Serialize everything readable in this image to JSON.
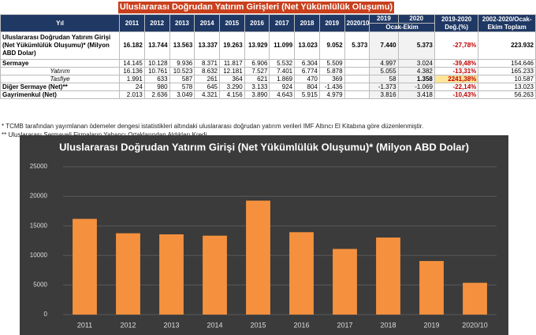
{
  "table": {
    "title": "Uluslararası Doğrudan Yatırım Girişleri (Net Yükümlülük Oluşumu)",
    "header": [
      "Yıl",
      "2011",
      "2012",
      "2013",
      "2014",
      "2015",
      "2016",
      "2017",
      "2018",
      "2019",
      "2020/10",
      "2019",
      "2020",
      "2019-2020 Değ.(%)",
      "2002-2020/Ocak-Ekim Toplam"
    ],
    "subheader": "Ocak-Ekim",
    "rows": [
      [
        "Uluslararası Doğrudan Yatırım Girişi (Net Yükümlülük Oluşumu)* (Milyon ABD Dolar)",
        "16.182",
        "13.744",
        "13.563",
        "13.337",
        "19.263",
        "13.929",
        "11.099",
        "13.023",
        "9.052",
        "5.373",
        "7.440",
        "5.373",
        "-27,78%",
        "223.932"
      ],
      [
        "Sermaye",
        "14.145",
        "10.128",
        "9.936",
        "8.371",
        "11.817",
        "6.906",
        "5.532",
        "6.304",
        "5.509",
        null,
        "4.997",
        "3.024",
        "-39,48%",
        "154.646"
      ],
      [
        "Yatırım",
        "16.136",
        "10.761",
        "10.523",
        "8.632",
        "12.181",
        "7.527",
        "7.401",
        "6.774",
        "5.878",
        null,
        "5.055",
        "4.382",
        "-13,31%",
        "165.233"
      ],
      [
        "Tasfiye",
        "1.991",
        "633",
        "587",
        "261",
        "364",
        "621",
        "1.869",
        "470",
        "369",
        null,
        "58",
        "1.358",
        "2241,38%",
        "10.587"
      ],
      [
        "Diğer Sermaye (Net)**",
        "24",
        "980",
        "578",
        "645",
        "3.290",
        "3.133",
        "924",
        "804",
        "-1.436",
        null,
        "-1.373",
        "-1.069",
        "-22,14%",
        "13.023"
      ],
      [
        "Gayrimenkul (Net)",
        "2.013",
        "2.636",
        "3.049",
        "4.321",
        "4.156",
        "3.890",
        "4.643",
        "5.915",
        "4.979",
        null,
        "3.816",
        "3.418",
        "-10,43%",
        "56.263"
      ]
    ],
    "notes": [
      "* TCMB tarafından yayımlanan ödemeler dengesi istatistikleri altındaki uluslararası doğrudan yatırım verileri IMF Altıncı El Kitabına göre düzenlenmiştir.",
      "** Uluslararası Sermayeli Firmaların Yabancı Ortaklarından Aldıkları Kredi"
    ]
  },
  "chart_data": {
    "type": "bar",
    "title": "Uluslararası Doğrudan Yatırım Girişi (Net Yükümlülük Oluşumu)* (Milyon ABD Dolar)",
    "categories": [
      "2011",
      "2012",
      "2013",
      "2014",
      "2015",
      "2016",
      "2017",
      "2018",
      "2019",
      "2020/10"
    ],
    "values": [
      16182,
      13744,
      13563,
      13337,
      19263,
      13929,
      11099,
      13023,
      9052,
      5373
    ],
    "color": "#f5913e",
    "ylim": [
      0,
      25000
    ],
    "yticks": [
      0,
      5000,
      10000,
      15000,
      20000,
      25000
    ],
    "grid": true
  }
}
